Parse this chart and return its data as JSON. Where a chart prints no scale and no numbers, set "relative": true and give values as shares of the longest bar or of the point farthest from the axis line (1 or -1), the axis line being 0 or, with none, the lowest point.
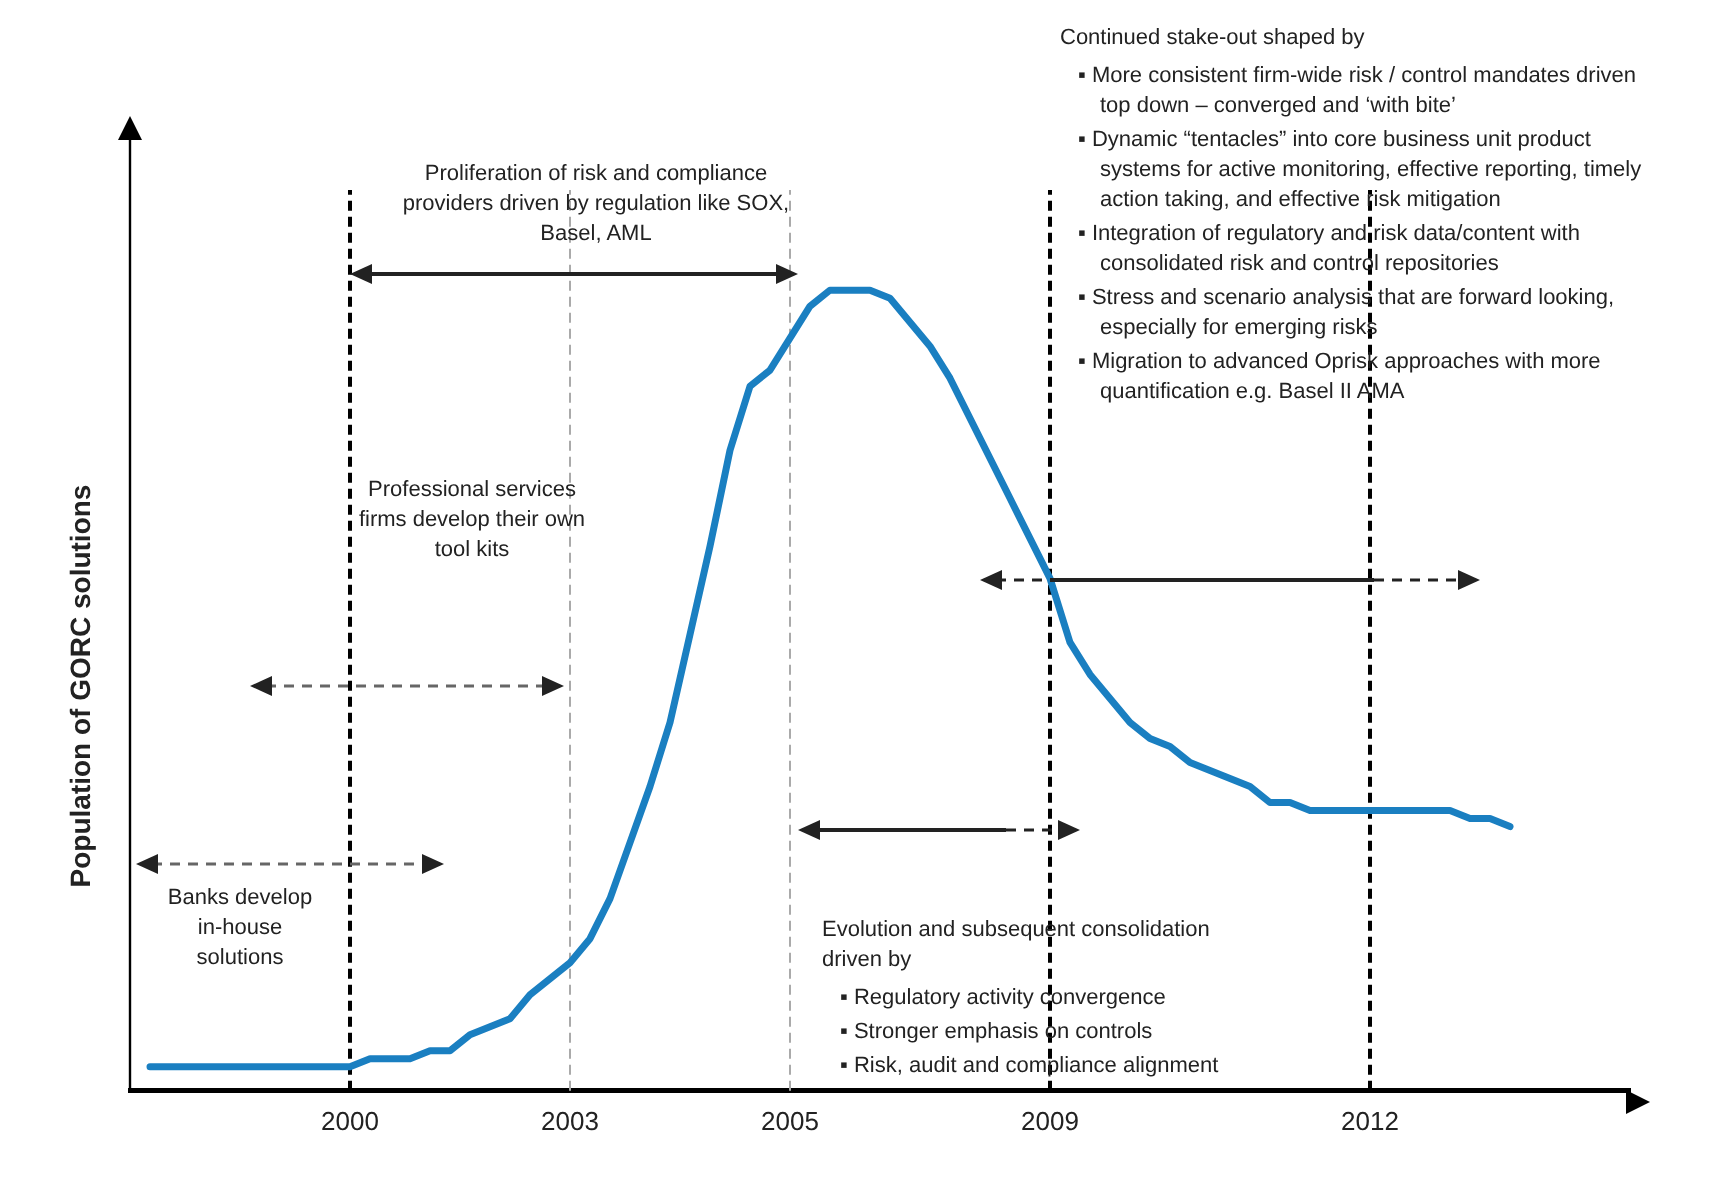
{
  "chart_data": {
    "type": "line",
    "relative": true,
    "ylabel": "Population of GORC solutions",
    "categories": [
      null,
      null,
      null,
      null,
      null,
      null,
      null,
      null,
      null,
      null,
      null,
      "2000",
      null,
      null,
      null,
      null,
      null,
      null,
      null,
      null,
      null,
      null,
      "2003",
      null,
      null,
      null,
      null,
      null,
      null,
      null,
      null,
      null,
      null,
      "2005",
      null,
      null,
      null,
      null,
      null,
      null,
      null,
      null,
      null,
      null,
      null,
      null,
      "2009",
      null,
      null,
      null,
      null,
      null,
      null,
      null,
      null,
      null,
      null,
      null,
      null,
      null,
      null,
      null,
      "2012",
      null,
      null,
      null,
      null,
      null,
      null,
      null,
      null,
      null,
      null,
      null,
      null,
      null
    ],
    "series": [
      {
        "color": "#1a7fc1",
        "values": [
          null,
          0.03,
          0.03,
          0.03,
          0.03,
          0.03,
          0.03,
          0.03,
          0.03,
          0.03,
          0.03,
          0.03,
          0.04,
          0.04,
          0.04,
          0.05,
          0.05,
          0.07,
          0.08,
          0.09,
          0.12,
          0.14,
          0.16,
          0.19,
          0.24,
          0.31,
          0.38,
          0.46,
          0.57,
          0.68,
          0.8,
          0.88,
          0.9,
          0.94,
          0.98,
          1.0,
          1.0,
          1.0,
          0.99,
          0.96,
          0.93,
          0.89,
          0.84,
          0.79,
          0.74,
          0.69,
          0.64,
          0.56,
          0.52,
          0.49,
          0.46,
          0.44,
          0.43,
          0.41,
          0.4,
          0.39,
          0.38,
          0.36,
          0.36,
          0.35,
          0.35,
          0.35,
          0.35,
          0.35,
          0.35,
          0.35,
          0.35,
          0.34,
          0.34,
          0.33,
          null,
          null,
          null,
          null,
          null,
          null
        ]
      }
    ],
    "ref_lines": [
      {
        "axis": "x",
        "value": "2000",
        "color": "#000000",
        "line_style": "dashed"
      },
      {
        "axis": "x",
        "value": "2003",
        "color": "#aaaaaa",
        "line_style": "dashed"
      },
      {
        "axis": "x",
        "value": "2005",
        "color": "#aaaaaa",
        "line_style": "dashed"
      },
      {
        "axis": "x",
        "value": "2009",
        "color": "#000000",
        "line_style": "dashed"
      },
      {
        "axis": "x",
        "value": "2012",
        "color": "#000000",
        "line_style": "dashed"
      }
    ],
    "annotations": [
      "Proliferation of risk and compliance providers driven by regulation like SOX, Basel, AML",
      "Professional services firms develop their own tool kits",
      "Banks develop in-house solutions",
      "Continued stake-out shaped by",
      "▪ More consistent firm-wide risk / control mandates driven top down – converged and ‘with bite’",
      "▪ Dynamic “tentacles” into core business unit product systems for active monitoring, effective reporting, timely action taking, and effective risk mitigation",
      "▪ Integration of regulatory and risk data/content with consolidated risk and control repositories",
      "▪ Stress and scenario analysis that are forward looking, especially for emerging risks",
      "▪ Migration to advanced Oprisk approaches with more quantification e.g. Basel II AMA",
      "Evolution and subsequent consolidation driven by",
      "▪ Regulatory activity convergence",
      "▪ Stronger emphasis on controls",
      "▪ Risk, audit and compliance alignment"
    ],
    "grid": false,
    "legend": false,
    "marker": "none",
    "line_style": "solid"
  }
}
